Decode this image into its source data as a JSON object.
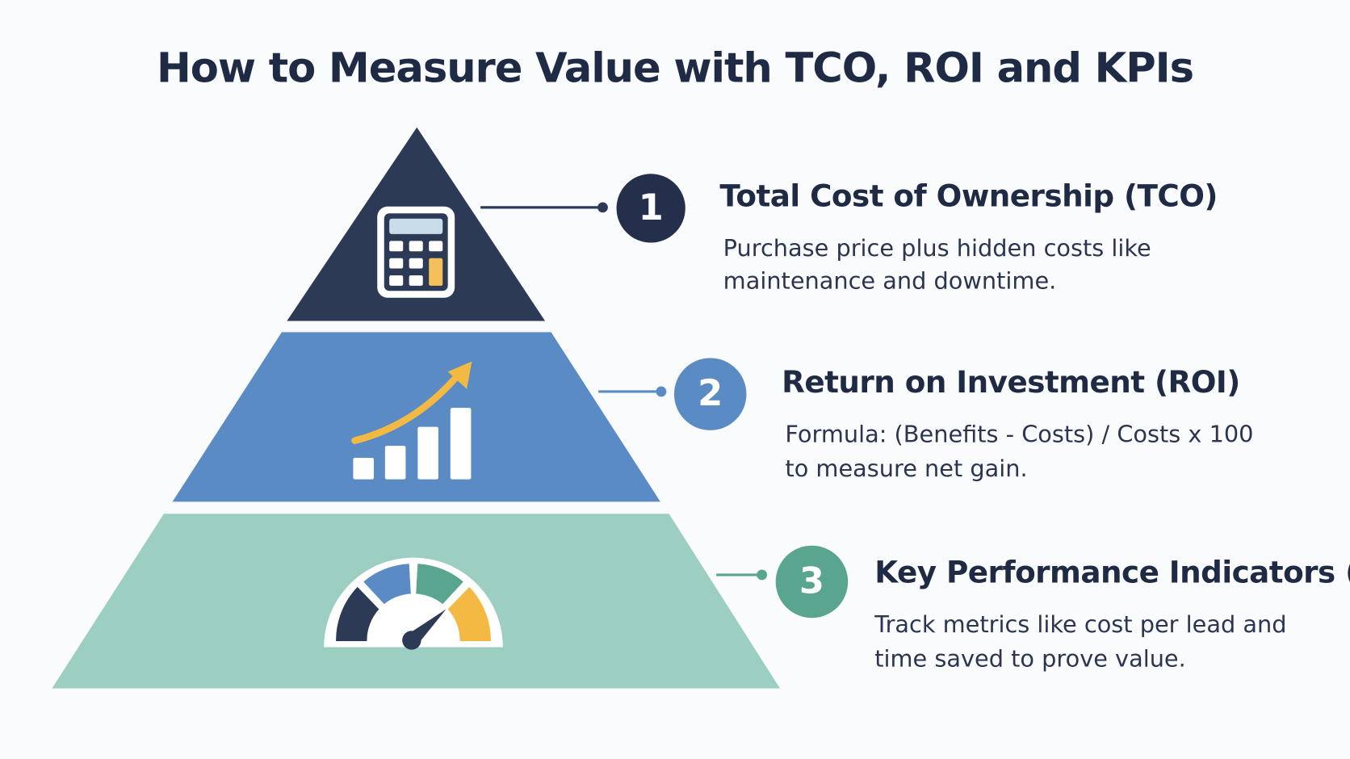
{
  "title": "How to Measure Value with TCO, ROI and KPIs",
  "levels": [
    {
      "number": "1",
      "heading": "Total Cost of Ownership (TCO)",
      "description": [
        "Purchase price plus hidden costs like",
        "maintenance and downtime."
      ]
    },
    {
      "number": "2",
      "heading": "Return on Investment (ROI)",
      "description": [
        "Formula: (Benefits - Costs) / Costs x 100",
        "to measure net gain."
      ]
    },
    {
      "number": "3",
      "heading": "Key Performance Indicators (KPIs)",
      "description": [
        "Track metrics like cost per lead and",
        "time saved to prove value."
      ]
    }
  ]
}
